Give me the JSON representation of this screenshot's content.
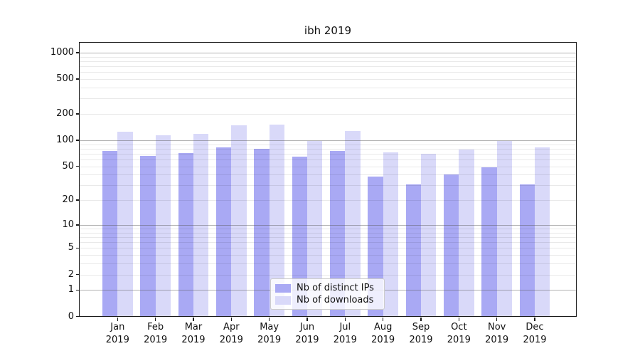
{
  "title": "ibh 2019",
  "chart_data": {
    "type": "bar",
    "title": "ibh 2019",
    "y_scale": "log1p",
    "grid": true,
    "y_ticks": [
      0,
      1,
      2,
      5,
      10,
      20,
      50,
      100,
      200,
      500,
      1000
    ],
    "ylim": [
      0,
      1300
    ],
    "legend_position": "lower-center",
    "categories": [
      "Jan 2019",
      "Feb 2019",
      "Mar 2019",
      "Apr 2019",
      "May 2019",
      "Jun 2019",
      "Jul 2019",
      "Aug 2019",
      "Sep 2019",
      "Oct 2019",
      "Nov 2019",
      "Dec 2019"
    ],
    "series": [
      {
        "name": "Nb of distinct IPs",
        "color": "#a9a9f4",
        "values": [
          75,
          66,
          71,
          82,
          79,
          65,
          76,
          38,
          31,
          40,
          49,
          31
        ]
      },
      {
        "name": "Nb of downloads",
        "color": "#d9d9f9",
        "values": [
          126,
          114,
          118,
          147,
          151,
          98,
          128,
          72,
          70,
          78,
          99,
          82
        ]
      }
    ]
  }
}
